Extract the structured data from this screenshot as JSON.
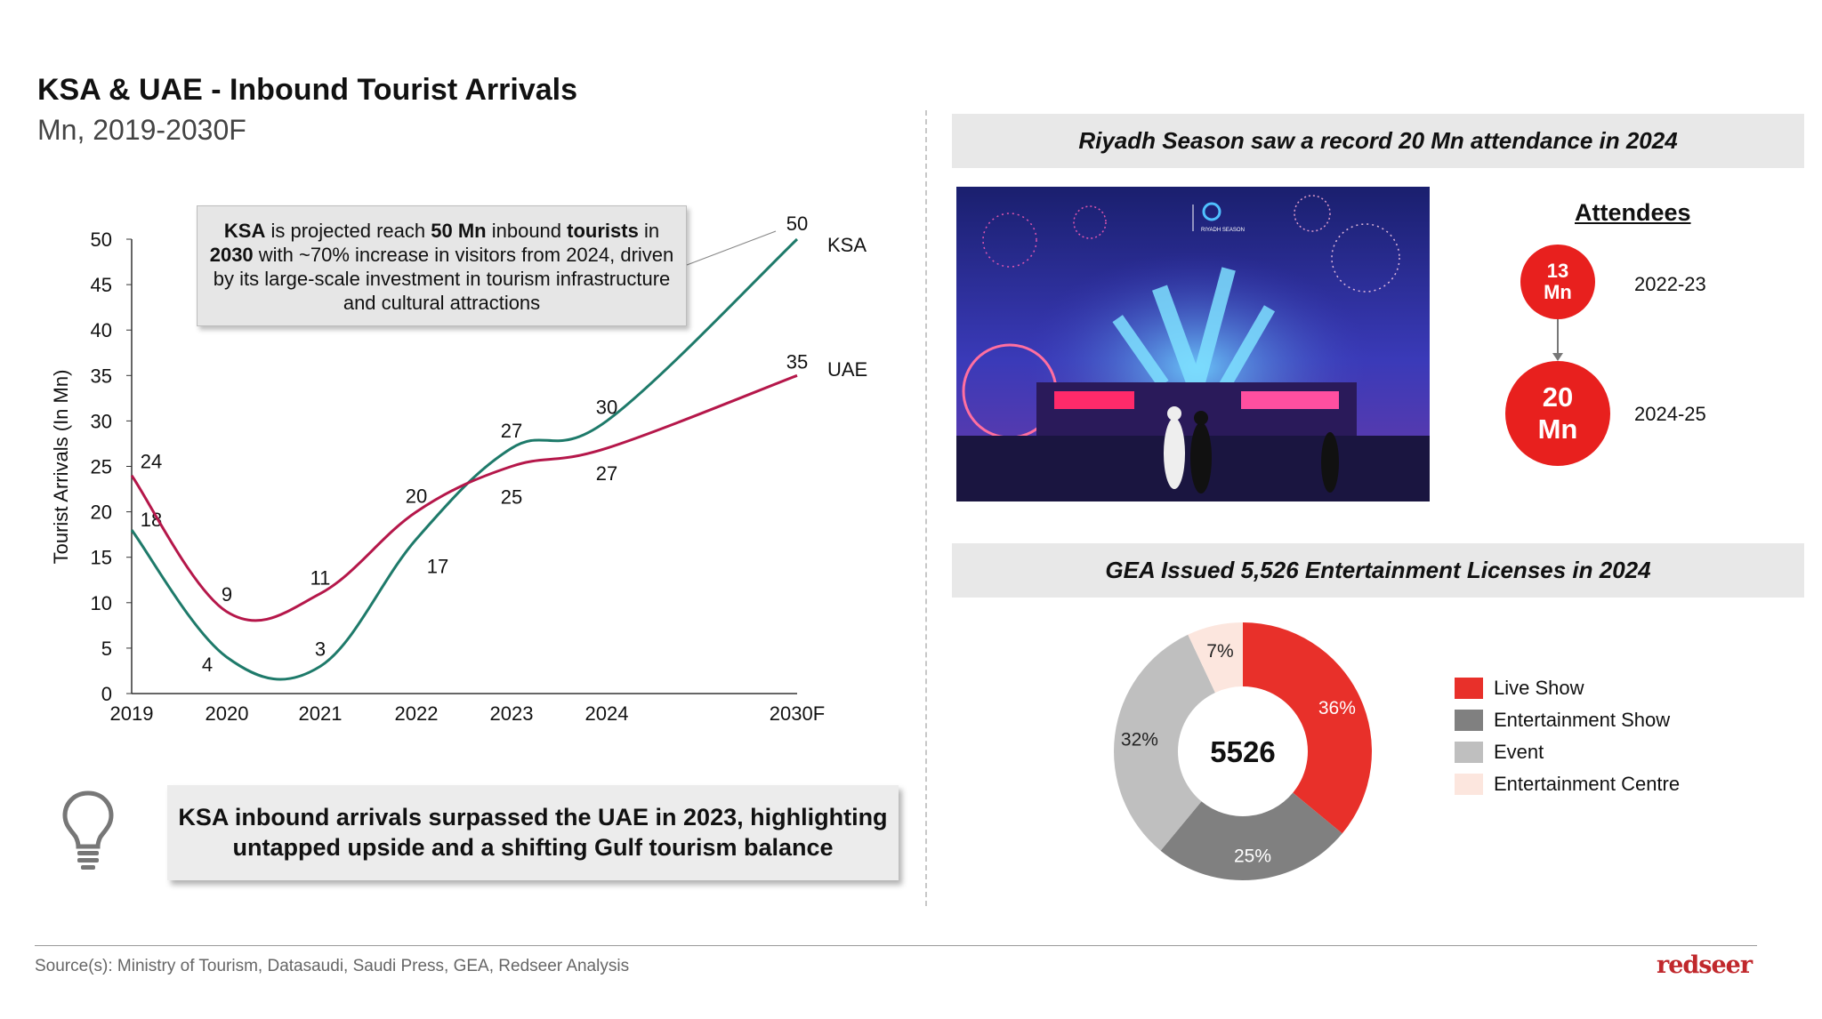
{
  "title": "KSA & UAE - Inbound Tourist Arrivals",
  "subtitle": "Mn, 2019-2030F",
  "chart_data": [
    {
      "type": "line",
      "title": "KSA & UAE - Inbound Tourist Arrivals",
      "ylabel": "Tourist Arrivals (In Mn)",
      "xlabel": "",
      "categories": [
        "2019",
        "2020",
        "2021",
        "2022",
        "2023",
        "2024",
        "2030F"
      ],
      "yticks": [
        0,
        5,
        10,
        15,
        20,
        25,
        30,
        35,
        40,
        45,
        50
      ],
      "ylim": [
        0,
        50
      ],
      "series": [
        {
          "name": "KSA",
          "color": "#1e7a6a",
          "values": [
            18,
            4,
            3,
            17,
            27,
            30,
            50
          ]
        },
        {
          "name": "UAE",
          "color": "#b5174a",
          "values": [
            24,
            9,
            11,
            20,
            25,
            27,
            35
          ]
        }
      ],
      "annotation": {
        "parts": [
          {
            "t": "KSA",
            "b": true
          },
          {
            "t": " is projected reach ",
            "b": false
          },
          {
            "t": "50 Mn",
            "b": true
          },
          {
            "t": " inbound ",
            "b": false
          },
          {
            "t": "tourists",
            "b": true
          },
          {
            "t": " in ",
            "b": false
          },
          {
            "t": "2030",
            "b": true
          },
          {
            "t": " with ~70% increase in visitors from 2024, driven by its large-scale investment in tourism infrastructure and cultural attractions",
            "b": false
          }
        ]
      }
    },
    {
      "type": "pie",
      "title": "GEA Issued 5,526 Entertainment Licenses in 2024",
      "center_label": "5526",
      "categories": [
        "Live Show",
        "Entertainment Show",
        "Event",
        "Entertainment Centre"
      ],
      "values": [
        36,
        25,
        32,
        7
      ],
      "labels": [
        "36%",
        "25%",
        "32%",
        "7%"
      ],
      "colors": [
        "#e8302a",
        "#808080",
        "#bfbfbf",
        "#fce6de"
      ],
      "label_colors": [
        "#ffffff",
        "#ffffff",
        "#222222",
        "#222222"
      ],
      "legend": "right"
    }
  ],
  "insight": "KSA inbound arrivals surpassed the UAE in 2023, highlighting untapped upside and a shifting Gulf tourism balance",
  "riyadh": {
    "header": "Riyadh Season saw a record 20 Mn attendance in 2024",
    "attendees_title": "Attendees",
    "items": [
      {
        "value": "13",
        "unit": "Mn",
        "period": "2022-23"
      },
      {
        "value": "20",
        "unit": "Mn",
        "period": "2024-25"
      }
    ],
    "photo_logo_text": "RIYADH SEASON"
  },
  "source": "Source(s): Ministry of Tourism, Datasaudi, Saudi Press, GEA, Redseer Analysis",
  "logo": "redseer"
}
